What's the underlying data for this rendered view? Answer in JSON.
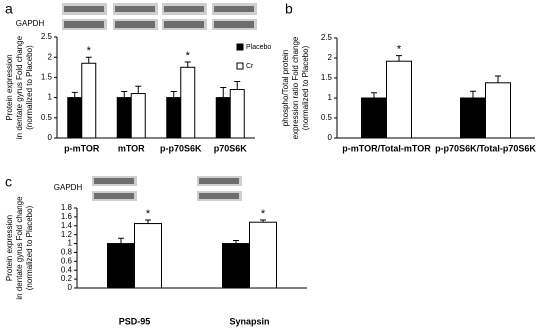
{
  "chart_data": [
    {
      "type": "bar",
      "panel": "a",
      "blot_label": "GAPDH",
      "ylabel": [
        "Protein expression",
        "in dentate gyrus Fold change",
        "(normalized to Placebo)"
      ],
      "categories": [
        "p-mTOR",
        "mTOR",
        "p-p70S6K",
        "p70S6K"
      ],
      "series": [
        {
          "name": "Placebo",
          "color": "#000000",
          "values": [
            1,
            1,
            1,
            1
          ],
          "errors": [
            0.13,
            0.15,
            0.15,
            0.25
          ]
        },
        {
          "name": "Cr",
          "color": "#ffffff",
          "values": [
            1.85,
            1.1,
            1.75,
            1.2
          ],
          "errors": [
            0.15,
            0.18,
            0.13,
            0.2
          ],
          "significance": [
            "*",
            null,
            "*",
            null
          ]
        }
      ],
      "ylim": [
        0,
        2.5
      ],
      "yticks": [
        0,
        0.5,
        1,
        1.5,
        2,
        2.5
      ],
      "legend": "upper right"
    },
    {
      "type": "bar",
      "panel": "b",
      "ylabel": [
        "phospho/Total protein",
        "expression ratio Fold change",
        "(normalized to Placebo)"
      ],
      "categories": [
        "p-mTOR/Total-mTOR",
        "p-p70S6K/Total-p70S6K"
      ],
      "series": [
        {
          "color": "#000000",
          "values": [
            1,
            1
          ],
          "errors": [
            0.13,
            0.17
          ]
        },
        {
          "color": "#ffffff",
          "values": [
            1.92,
            1.38
          ],
          "errors": [
            0.14,
            0.17
          ],
          "significance": [
            "*",
            null
          ]
        }
      ],
      "ylim": [
        0,
        2.5
      ],
      "yticks": [
        0,
        0.5,
        1,
        1.5,
        2,
        2.5
      ]
    },
    {
      "type": "bar",
      "panel": "c",
      "blot_label": "GAPDH",
      "ylabel": [
        "Protein expression",
        "in dentate gyrus  Fold change",
        "(normalized to Placebo)"
      ],
      "categories": [
        "PSD-95",
        "Synapsin"
      ],
      "series": [
        {
          "color": "#000000",
          "values": [
            1,
            1
          ],
          "errors": [
            0.12,
            0.07
          ]
        },
        {
          "color": "#ffffff",
          "values": [
            1.45,
            1.48
          ],
          "errors": [
            0.08,
            0.05
          ],
          "significance": [
            "*",
            "*"
          ]
        }
      ],
      "ylim": [
        0,
        1.8
      ],
      "yticks": [
        0,
        0.2,
        0.4,
        0.6,
        0.8,
        1,
        1.2,
        1.4,
        1.6,
        1.8
      ]
    }
  ]
}
